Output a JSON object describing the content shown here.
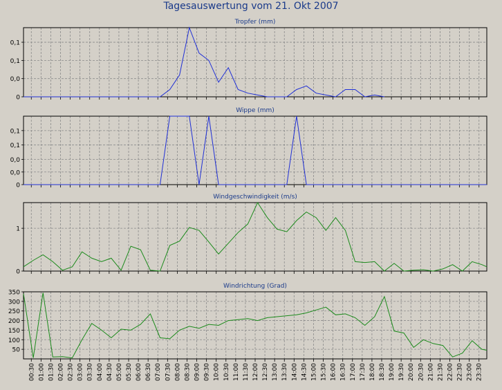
{
  "title": "Tagesauswertung vom 21. Okt 2007",
  "x_labels": [
    "00:30",
    "01:00",
    "01:30",
    "02:00",
    "02:30",
    "03:00",
    "03:30",
    "04:00",
    "04:30",
    "05:00",
    "05:30",
    "06:00",
    "06:30",
    "07:00",
    "07:30",
    "08:00",
    "08:30",
    "09:00",
    "09:30",
    "10:00",
    "10:30",
    "11:00",
    "11:30",
    "12:00",
    "12:30",
    "13:00",
    "13:30",
    "14:00",
    "14:30",
    "15:00",
    "15:30",
    "16:00",
    "16:30",
    "17:00",
    "17:30",
    "18:00",
    "18:30",
    "19:00",
    "19:30",
    "20:00",
    "20:30",
    "21:00",
    "21:30",
    "22:00",
    "22:30",
    "23:00",
    "23:30"
  ],
  "colors": {
    "tropfer": "#1f2fd6",
    "wippe": "#1f2fd6",
    "wind": "#1b8a1b",
    "grid": "#8a8a8a",
    "frame": "#000000",
    "title": "#1a3a8a",
    "subtitle": "#1a3a8a"
  },
  "chart_data": [
    {
      "type": "line",
      "title": "Tropfer (mm)",
      "y_tick_labels": [
        "0,1",
        "0,1",
        "0,0",
        "0"
      ],
      "ylim": [
        0,
        0.19
      ],
      "y_ticks": [
        0.15,
        0.1,
        0.05,
        0
      ],
      "x_start": 0,
      "x_end": 23.75,
      "series": [
        {
          "x": [
            0,
            7,
            7.5,
            8,
            8.5,
            9,
            9.5,
            10,
            10.5,
            11,
            11.5,
            12,
            12.5,
            13,
            13.5,
            14,
            14.5,
            15,
            15.5,
            16,
            16.5,
            17,
            17.5,
            18,
            18.5
          ],
          "values": [
            0,
            0,
            0.02,
            0.06,
            0.19,
            0.12,
            0.1,
            0.04,
            0.08,
            0.02,
            0.01,
            0.005,
            0,
            0,
            0,
            0.02,
            0.03,
            0.01,
            0.005,
            0,
            0.02,
            0.02,
            0,
            0.005,
            0
          ]
        }
      ]
    },
    {
      "type": "line",
      "title": "Wippe (mm)",
      "y_tick_labels": [
        "0,1",
        "0,1",
        "0,0",
        "0,0",
        "0"
      ],
      "ylim": [
        0,
        0.19
      ],
      "y_ticks": [
        0.15,
        0.11,
        0.07,
        0.035,
        0
      ],
      "x_start": 0,
      "x_end": 23.75,
      "series": [
        {
          "x": [
            0,
            7,
            7.5,
            8,
            8.5,
            9,
            9.5,
            10,
            10.5,
            11,
            13.5,
            14,
            14.5,
            15,
            23.75
          ],
          "values": [
            0,
            0,
            0.19,
            0.19,
            0.19,
            0,
            0.19,
            0,
            0,
            0,
            0,
            0.19,
            0,
            0,
            0
          ]
        }
      ]
    },
    {
      "type": "line",
      "title": "Windgeschwindigkeit (m/s)",
      "y_tick_labels": [
        "1",
        "0"
      ],
      "ylim": [
        0,
        1.6
      ],
      "y_ticks": [
        1,
        0
      ],
      "x_start": 0,
      "x_end": 23.75,
      "series": [
        {
          "x": [
            0,
            0.5,
            1,
            1.5,
            2,
            2.5,
            3,
            3.5,
            4,
            4.5,
            5,
            5.5,
            6,
            6.5,
            7,
            7.5,
            8,
            8.5,
            9,
            9.5,
            10,
            10.5,
            11,
            11.5,
            12,
            12.5,
            13,
            13.5,
            14,
            14.5,
            15,
            15.5,
            16,
            16.5,
            17,
            17.5,
            18,
            18.5,
            19,
            19.5,
            20,
            20.5,
            21,
            21.5,
            22,
            22.5,
            23,
            23.5,
            23.75
          ],
          "values": [
            0.1,
            0.25,
            0.38,
            0.22,
            0.02,
            0.1,
            0.45,
            0.3,
            0.22,
            0.3,
            0.02,
            0.58,
            0.5,
            0.02,
            0,
            0.6,
            0.7,
            1.02,
            0.95,
            0.68,
            0.4,
            0.65,
            0.9,
            1.1,
            1.6,
            1.25,
            0.98,
            0.92,
            1.18,
            1.38,
            1.25,
            0.95,
            1.25,
            0.95,
            0.22,
            0.2,
            0.22,
            0,
            0.18,
            0,
            0.02,
            0.03,
            0,
            0.05,
            0.15,
            0,
            0.22,
            0.15,
            0.1
          ]
        }
      ]
    },
    {
      "type": "line",
      "title": "Windrichtung (Grad)",
      "y_tick_labels": [
        "350",
        "300",
        "250",
        "200",
        "150",
        "100",
        "50"
      ],
      "ylim": [
        0,
        350
      ],
      "y_ticks": [
        350,
        300,
        250,
        200,
        150,
        100,
        50
      ],
      "x_start": 0,
      "x_end": 23.75,
      "series": [
        {
          "x": [
            0,
            0.5,
            1,
            1.5,
            2,
            2.5,
            3,
            3.5,
            4,
            4.5,
            5,
            5.5,
            6,
            6.5,
            7,
            7.5,
            8,
            8.5,
            9,
            9.5,
            10,
            10.5,
            11,
            11.5,
            12,
            12.5,
            13,
            13.5,
            14,
            14.5,
            15,
            15.5,
            16,
            16.5,
            17,
            17.5,
            18,
            18.5,
            19,
            19.5,
            20,
            20.5,
            21,
            21.5,
            22,
            22.5,
            23,
            23.5,
            23.75
          ],
          "values": [
            340,
            5,
            345,
            10,
            12,
            5,
            100,
            185,
            150,
            110,
            155,
            150,
            180,
            235,
            110,
            105,
            150,
            170,
            160,
            180,
            175,
            200,
            205,
            210,
            200,
            215,
            220,
            225,
            230,
            240,
            255,
            270,
            230,
            235,
            215,
            175,
            220,
            325,
            145,
            135,
            60,
            100,
            80,
            70,
            10,
            30,
            95,
            50,
            45
          ]
        }
      ]
    }
  ]
}
